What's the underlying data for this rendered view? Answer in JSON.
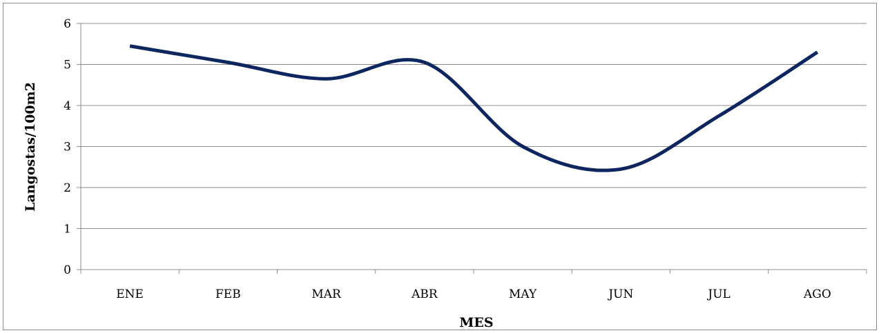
{
  "chart_data": {
    "type": "line",
    "title": "",
    "xlabel": "MES",
    "ylabel": "Langostas/100m2",
    "categories": [
      "ENE",
      "FEB",
      "MAR",
      "ABR",
      "MAY",
      "JUN",
      "JUL",
      "AGO"
    ],
    "series": [
      {
        "values": [
          5.45,
          5.05,
          4.65,
          5.05,
          3.0,
          2.45,
          3.75,
          5.3
        ],
        "color": "#0e2660"
      }
    ],
    "ylim": [
      0,
      6
    ],
    "yticks": [
      0,
      1,
      2,
      3,
      4,
      5,
      6
    ],
    "grid": true,
    "legend": "none"
  }
}
